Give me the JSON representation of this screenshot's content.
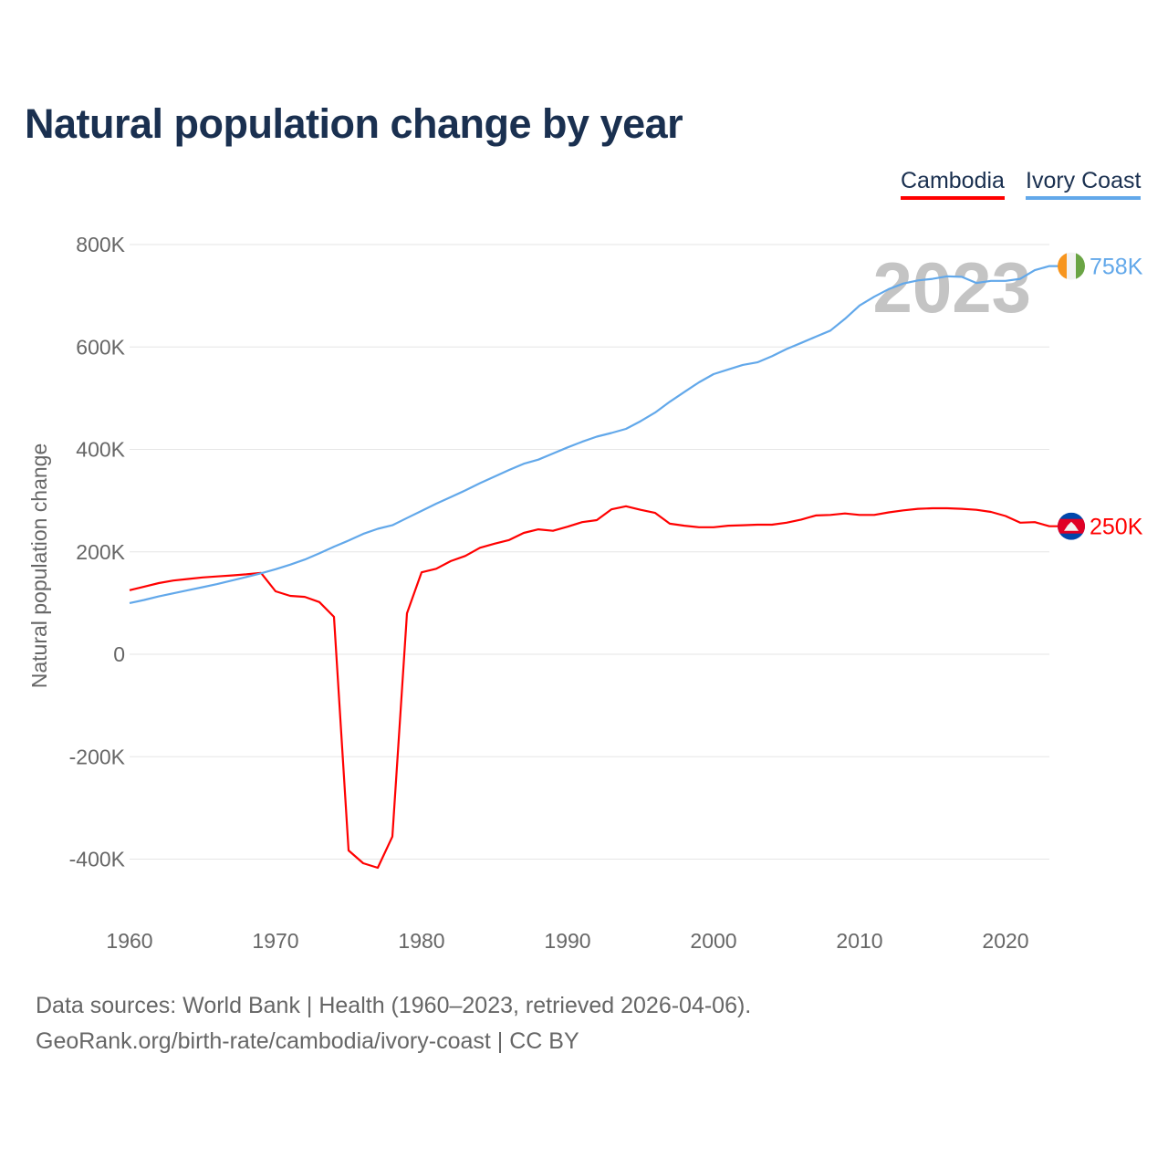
{
  "chart_data": {
    "type": "line",
    "title": "Natural population change by year",
    "ylabel": "Natural population change",
    "xlabel": "",
    "xlim": [
      1960,
      2023
    ],
    "ylim": [
      -500000,
      800000
    ],
    "x_ticks": [
      1960,
      1970,
      1980,
      1990,
      2000,
      2010,
      2020
    ],
    "x_tick_labels": [
      "1960",
      "1970",
      "1980",
      "1990",
      "2000",
      "2010",
      "2020"
    ],
    "y_ticks": [
      800000,
      600000,
      400000,
      200000,
      0,
      -200000,
      -400000
    ],
    "y_tick_labels": [
      "800K",
      "600K",
      "400K",
      "200K",
      "0",
      "-200K",
      "-400K"
    ],
    "grid": true,
    "legend_position": "top-right",
    "year_label": "2023",
    "x": [
      1960,
      1961,
      1962,
      1963,
      1964,
      1965,
      1966,
      1967,
      1968,
      1969,
      1970,
      1971,
      1972,
      1973,
      1974,
      1975,
      1976,
      1977,
      1978,
      1979,
      1980,
      1981,
      1982,
      1983,
      1984,
      1985,
      1986,
      1987,
      1988,
      1989,
      1990,
      1991,
      1992,
      1993,
      1994,
      1995,
      1996,
      1997,
      1998,
      1999,
      2000,
      2001,
      2002,
      2003,
      2004,
      2005,
      2006,
      2007,
      2008,
      2009,
      2010,
      2011,
      2012,
      2013,
      2014,
      2015,
      2016,
      2017,
      2018,
      2019,
      2020,
      2021,
      2022,
      2023
    ],
    "series": [
      {
        "name": "Cambodia",
        "color": "#ff0000",
        "end_label": "250K",
        "flag": "cambodia-flag",
        "values": [
          125000,
          132000,
          139000,
          144000,
          147000,
          150000,
          152000,
          154000,
          156000,
          159000,
          123000,
          114000,
          112000,
          102000,
          73000,
          -383000,
          -408000,
          -417000,
          -356000,
          80000,
          160000,
          167000,
          182000,
          192000,
          208000,
          216000,
          223000,
          237000,
          244000,
          241000,
          249000,
          258000,
          262000,
          283000,
          289000,
          282000,
          276000,
          255000,
          251000,
          248000,
          248000,
          251000,
          252000,
          253000,
          253000,
          257000,
          263000,
          271000,
          272000,
          275000,
          272000,
          272000,
          277000,
          281000,
          284000,
          285000,
          285000,
          284000,
          282000,
          278000,
          270000,
          257000,
          258000,
          250000
        ]
      },
      {
        "name": "Ivory Coast",
        "color": "#62a8ea",
        "end_label": "758K",
        "flag": "ivory-coast-flag",
        "values": [
          100000,
          106000,
          113000,
          119000,
          125000,
          131000,
          137000,
          144000,
          151000,
          158000,
          166000,
          175000,
          185000,
          197000,
          210000,
          222000,
          235000,
          245000,
          252000,
          266000,
          280000,
          294000,
          307000,
          320000,
          334000,
          347000,
          360000,
          372000,
          380000,
          392000,
          404000,
          415000,
          425000,
          432000,
          440000,
          455000,
          472000,
          493000,
          512000,
          531000,
          547000,
          556000,
          565000,
          570000,
          582000,
          596000,
          608000,
          620000,
          632000,
          655000,
          681000,
          698000,
          713000,
          724000,
          730000,
          733000,
          738000,
          737000,
          725000,
          729000,
          729000,
          733000,
          750000,
          758000
        ]
      }
    ]
  },
  "legend": {
    "cambodia": "Cambodia",
    "ivory_coast": "Ivory Coast"
  },
  "footer": {
    "line1": "Data sources: World Bank | Health (1960–2023, retrieved 2026-04-06).",
    "line2": "GeoRank.org/birth-rate/cambodia/ivory-coast | CC BY"
  }
}
